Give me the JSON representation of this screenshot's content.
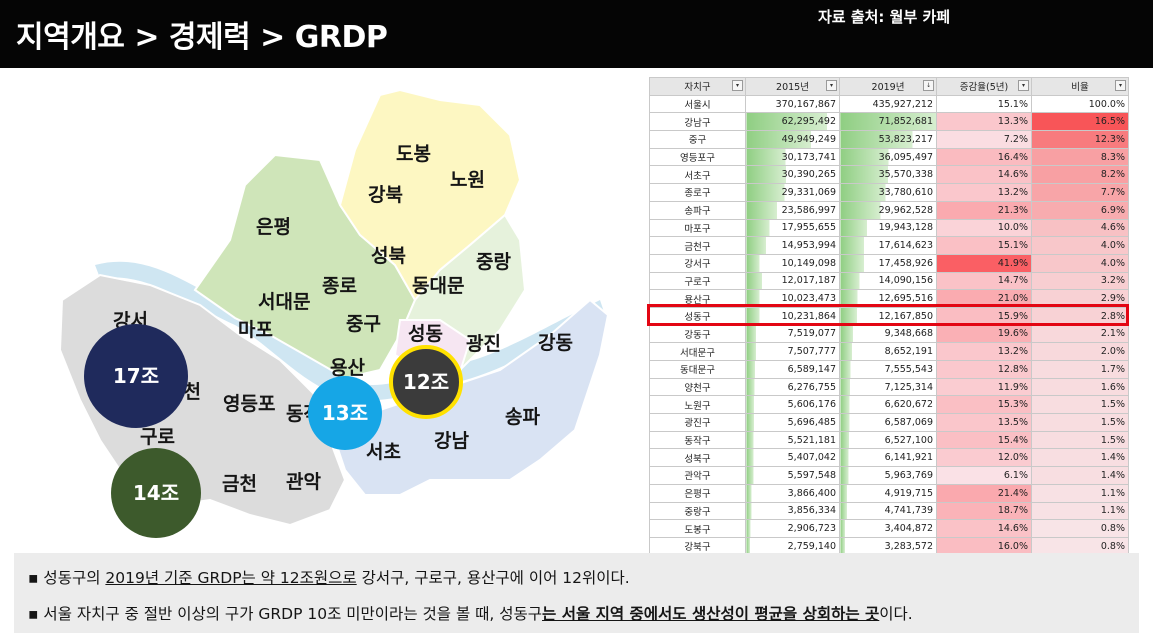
{
  "header": {
    "title": "지역개요 > 경제력 > GRDP",
    "source": "자료 출처: 월부 카페"
  },
  "map": {
    "districts": {
      "dobong": "도봉",
      "nowon": "노원",
      "gangbuk": "강북",
      "eunpyeong": "은평",
      "seongbuk": "성북",
      "jungnang": "중랑",
      "jongno": "종로",
      "dongdaemun": "동대문",
      "seodaemun": "서대문",
      "mapo": "마포",
      "junggu": "중구",
      "seongdong": "성동",
      "gwangjin": "광진",
      "gangdong": "강동",
      "yongsan": "용산",
      "gangseo": "강서",
      "yangcheon": "양천",
      "yeongdeungpo": "영등포",
      "dongjak": "동작",
      "guro": "구로",
      "gangnam": "강남",
      "songpa": "송파",
      "seocho": "서초",
      "geumcheon": "금천",
      "gwanak": "관악"
    },
    "bubbles": {
      "gangseo": "17조",
      "guro": "14조",
      "yongsan": "13조",
      "seongdong": "12조"
    },
    "colors": {
      "north": "#fdf7c2",
      "central": "#cfe5b9",
      "east": "#d9e3f3",
      "south": "#dcdcdc",
      "river": "#cfe6f2"
    }
  },
  "table": {
    "headers": [
      "자치구",
      "2015년",
      "2019년",
      "증감율(5년)",
      "비율"
    ],
    "max": {
      "v2015": 370167867,
      "v2019": 435927212
    },
    "rows": [
      {
        "gu": "서울시",
        "v2015": "370,167,867",
        "v2019": "435,927,212",
        "chg": "15.1%",
        "share": "100.0%"
      },
      {
        "gu": "강남구",
        "v2015": "62,295,492",
        "v2019": "71,852,681",
        "chg": "13.3%",
        "share": "16.5%"
      },
      {
        "gu": "중구",
        "v2015": "49,949,249",
        "v2019": "53,823,217",
        "chg": "7.2%",
        "share": "12.3%"
      },
      {
        "gu": "영등포구",
        "v2015": "30,173,741",
        "v2019": "36,095,497",
        "chg": "16.4%",
        "share": "8.3%"
      },
      {
        "gu": "서초구",
        "v2015": "30,390,265",
        "v2019": "35,570,338",
        "chg": "14.6%",
        "share": "8.2%"
      },
      {
        "gu": "종로구",
        "v2015": "29,331,069",
        "v2019": "33,780,610",
        "chg": "13.2%",
        "share": "7.7%"
      },
      {
        "gu": "송파구",
        "v2015": "23,586,997",
        "v2019": "29,962,528",
        "chg": "21.3%",
        "share": "6.9%"
      },
      {
        "gu": "마포구",
        "v2015": "17,955,655",
        "v2019": "19,943,128",
        "chg": "10.0%",
        "share": "4.6%"
      },
      {
        "gu": "금천구",
        "v2015": "14,953,994",
        "v2019": "17,614,623",
        "chg": "15.1%",
        "share": "4.0%"
      },
      {
        "gu": "강서구",
        "v2015": "10,149,098",
        "v2019": "17,458,926",
        "chg": "41.9%",
        "share": "4.0%"
      },
      {
        "gu": "구로구",
        "v2015": "12,017,187",
        "v2019": "14,090,156",
        "chg": "14.7%",
        "share": "3.2%"
      },
      {
        "gu": "용산구",
        "v2015": "10,023,473",
        "v2019": "12,695,516",
        "chg": "21.0%",
        "share": "2.9%"
      },
      {
        "gu": "성동구",
        "v2015": "10,231,864",
        "v2019": "12,167,850",
        "chg": "15.9%",
        "share": "2.8%"
      },
      {
        "gu": "강동구",
        "v2015": "7,519,077",
        "v2019": "9,348,668",
        "chg": "19.6%",
        "share": "2.1%"
      },
      {
        "gu": "서대문구",
        "v2015": "7,507,777",
        "v2019": "8,652,191",
        "chg": "13.2%",
        "share": "2.0%"
      },
      {
        "gu": "동대문구",
        "v2015": "6,589,147",
        "v2019": "7,555,543",
        "chg": "12.8%",
        "share": "1.7%"
      },
      {
        "gu": "양천구",
        "v2015": "6,276,755",
        "v2019": "7,125,314",
        "chg": "11.9%",
        "share": "1.6%"
      },
      {
        "gu": "노원구",
        "v2015": "5,606,176",
        "v2019": "6,620,672",
        "chg": "15.3%",
        "share": "1.5%"
      },
      {
        "gu": "광진구",
        "v2015": "5,696,485",
        "v2019": "6,587,069",
        "chg": "13.5%",
        "share": "1.5%"
      },
      {
        "gu": "동작구",
        "v2015": "5,521,181",
        "v2019": "6,527,100",
        "chg": "15.4%",
        "share": "1.5%"
      },
      {
        "gu": "성북구",
        "v2015": "5,407,042",
        "v2019": "6,141,921",
        "chg": "12.0%",
        "share": "1.4%"
      },
      {
        "gu": "관악구",
        "v2015": "5,597,548",
        "v2019": "5,963,769",
        "chg": "6.1%",
        "share": "1.4%"
      },
      {
        "gu": "은평구",
        "v2015": "3,866,400",
        "v2019": "4,919,715",
        "chg": "21.4%",
        "share": "1.1%"
      },
      {
        "gu": "중랑구",
        "v2015": "3,856,334",
        "v2019": "4,741,739",
        "chg": "18.7%",
        "share": "1.1%"
      },
      {
        "gu": "도봉구",
        "v2015": "2,906,723",
        "v2019": "3,404,872",
        "chg": "14.6%",
        "share": "0.8%"
      },
      {
        "gu": "강북구",
        "v2015": "2,759,140",
        "v2019": "3,283,572",
        "chg": "16.0%",
        "share": "0.8%"
      }
    ]
  },
  "summary": {
    "line1": [
      "▪ 성동구의 ",
      "2019년 기준 GRDP는 약 12조원으로",
      " 강서구, 구로구, 용산구에 이어 12위이다."
    ],
    "line2": [
      "▪ 서울 자치구 중 절반 이상의 구가 GRDP 10조 미만이라는 것을 볼 때, 성동구",
      "는 서울 지역 중에서도 생산성이 평균을 상회하는 곳",
      "이다."
    ]
  }
}
